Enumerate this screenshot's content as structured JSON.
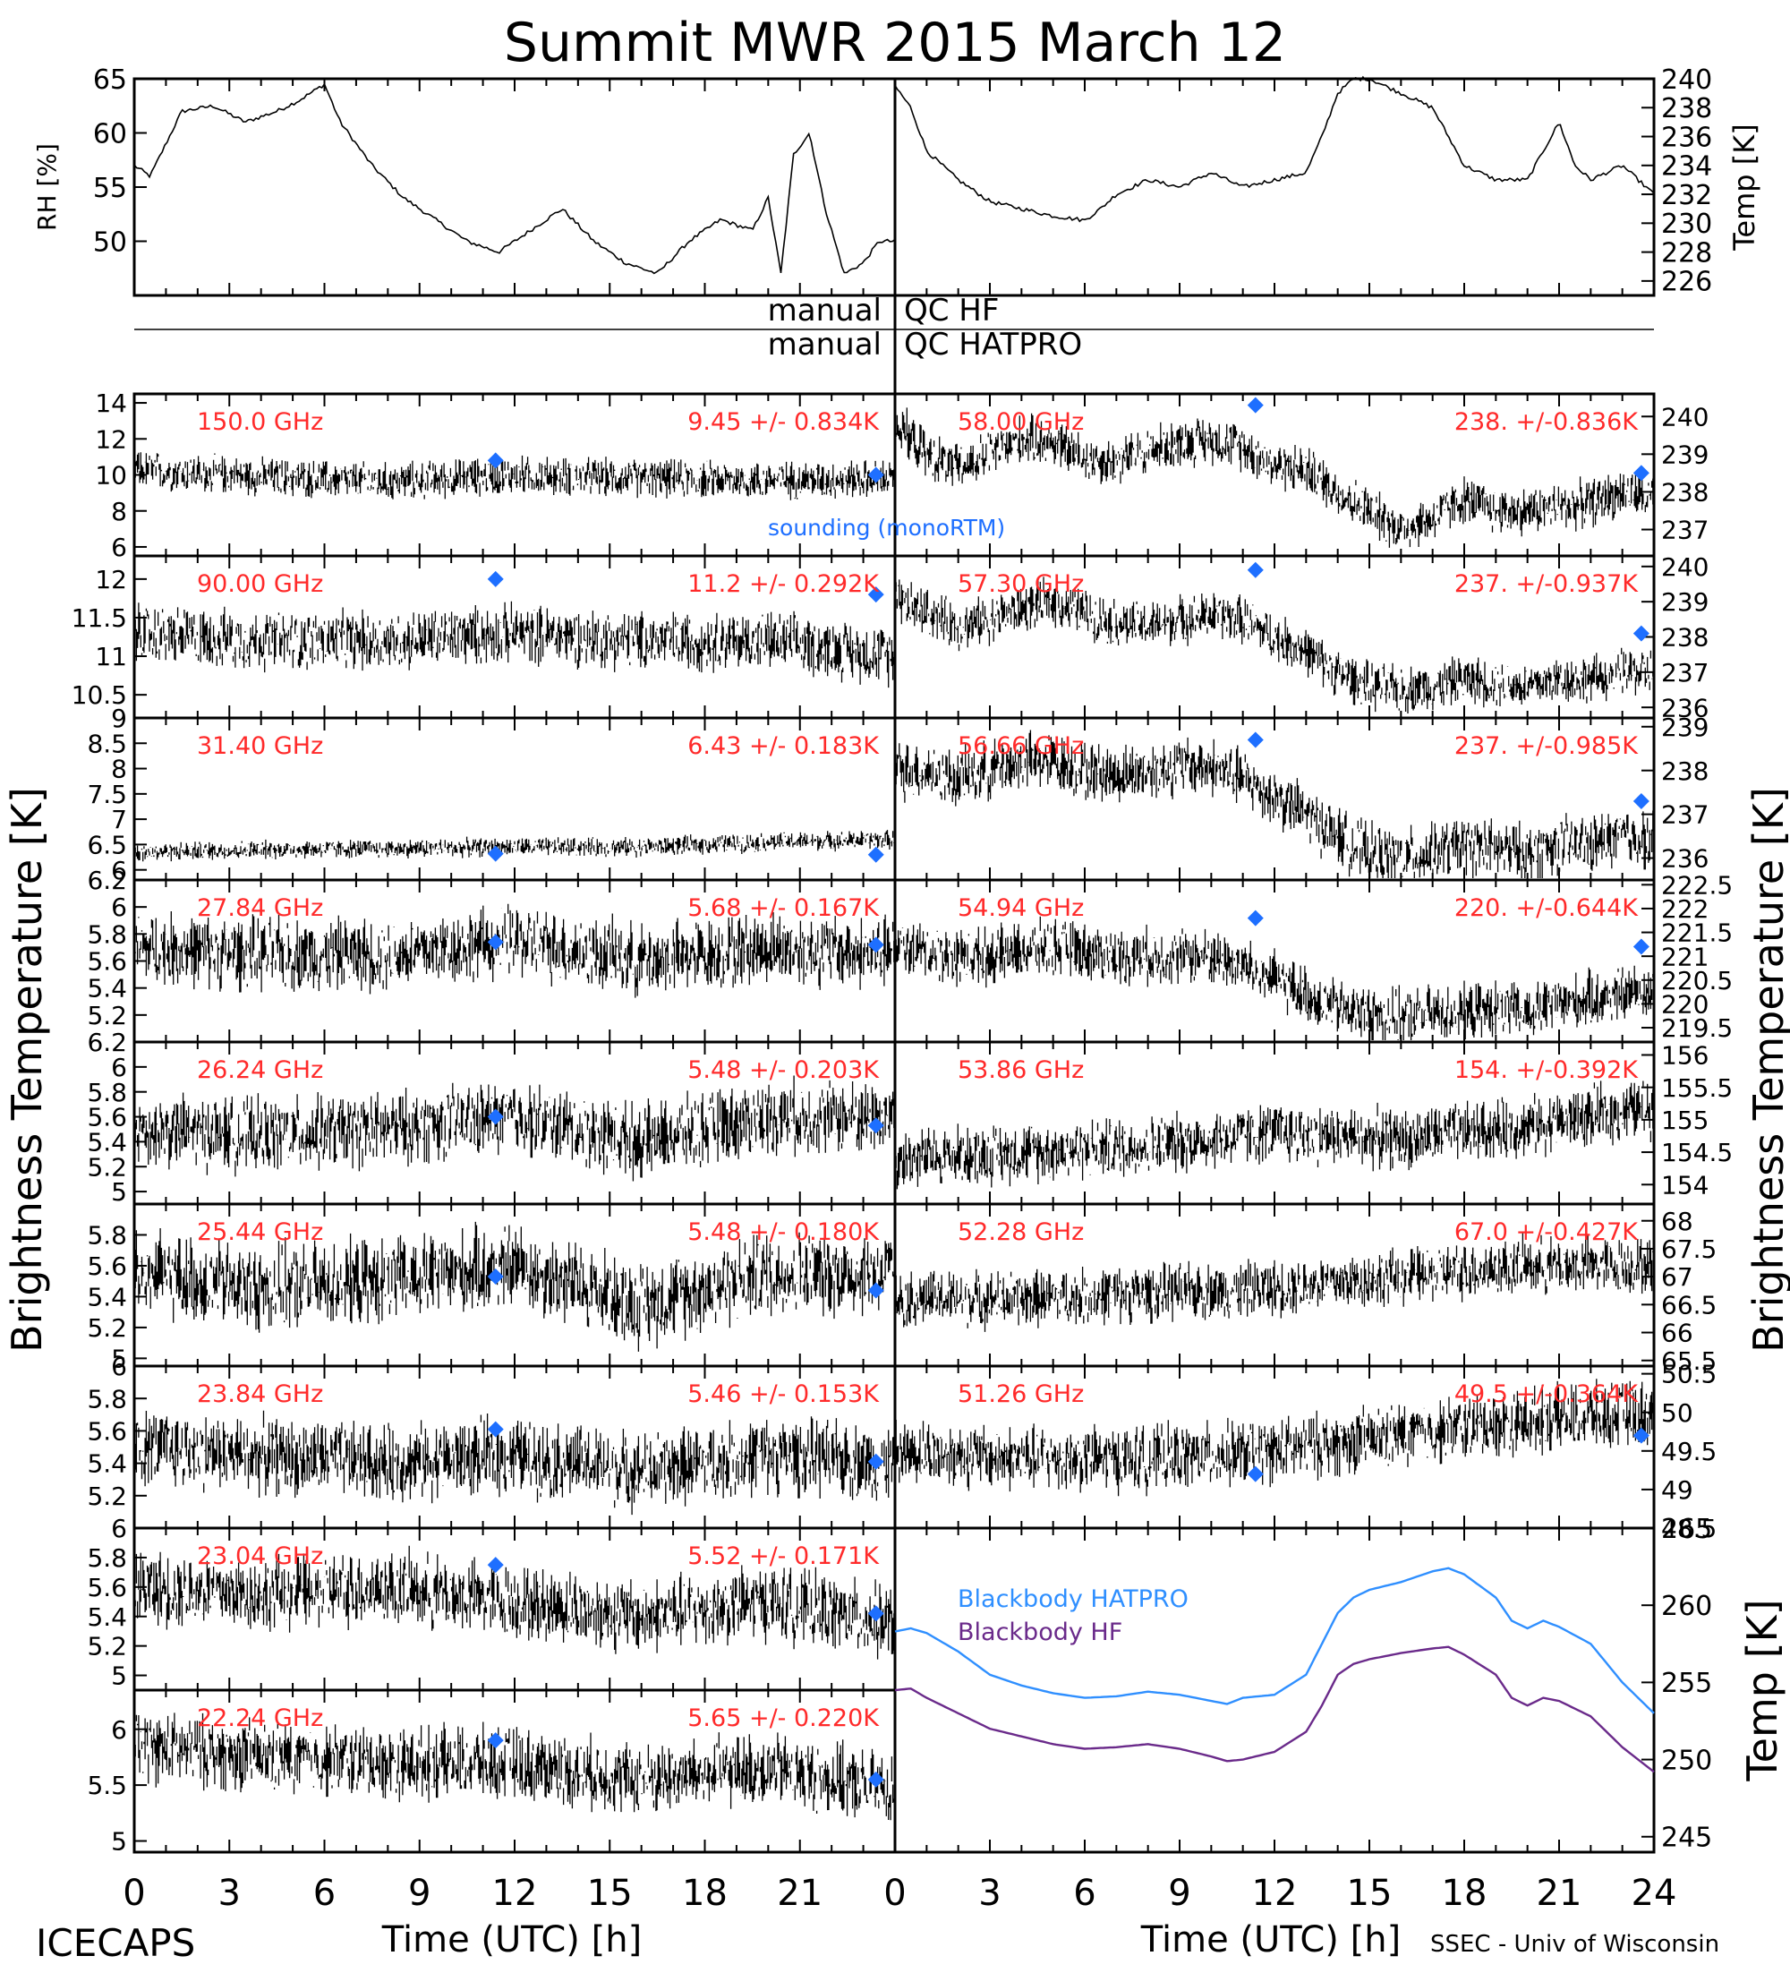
{
  "page": {
    "title": "Summit MWR 2015 March 12",
    "footer_left": "ICECAPS",
    "footer_right": "SSEC - Univ of Wisconsin",
    "qc_line1_left": "manual",
    "qc_line1_right": "QC HF",
    "qc_line2_left": "manual",
    "qc_line2_right": "QC HATPRO",
    "left_axis_title": "Brightness Temperature [K]",
    "right_axis_title": "Brightness Temperature [K]",
    "sounding_label": "sounding (monoRTM)",
    "xlabel": "Time (UTC) [h]",
    "xticks": [
      "0",
      "3",
      "6",
      "9",
      "12",
      "15",
      "18",
      "21",
      "24"
    ]
  },
  "colors": {
    "channel_label": "#ff2a2a",
    "sounding": "#1e6fff",
    "blackbody_hatpro": "#2f8fff",
    "blackbody_hf": "#6a2a8a",
    "trace": "#000000"
  },
  "chart_data": [
    {
      "type": "line",
      "id": "rh",
      "ylabel": "RH [%]",
      "ylim": [
        45,
        65
      ],
      "yticks": [
        50,
        55,
        60,
        65
      ],
      "xlim": [
        0,
        24
      ],
      "series": [
        {
          "x": [
            0,
            0.5,
            1.5,
            2.5,
            3.5,
            4.5,
            5.2,
            6.0,
            6.5,
            7.5,
            8.5,
            9.5,
            10.5,
            11.5,
            12.5,
            13.5,
            14.5,
            15.5,
            16.5,
            17.5,
            18.5,
            19.5,
            20.0,
            20.4,
            20.8,
            21.3,
            21.8,
            22.4,
            23.0,
            23.5,
            24
          ],
          "y": [
            57,
            56,
            62,
            62.5,
            61,
            62,
            63,
            64.5,
            61,
            57,
            54,
            52,
            50,
            49,
            51,
            53,
            50,
            48,
            47,
            50,
            52,
            51,
            54,
            47,
            58,
            60,
            53,
            47,
            48,
            50,
            50
          ]
        }
      ]
    },
    {
      "type": "line",
      "id": "temp",
      "ylabel": "Temp [K]",
      "ylim": [
        225,
        240
      ],
      "yticks": [
        226,
        228,
        230,
        232,
        234,
        236,
        238,
        240
      ],
      "xlim": [
        0,
        24
      ],
      "series": [
        {
          "x": [
            0,
            0.5,
            1.0,
            2.0,
            3.0,
            4.0,
            5.0,
            6.0,
            6.5,
            7.0,
            8.0,
            9.0,
            10.0,
            11.0,
            12.0,
            13.0,
            13.5,
            14.0,
            14.5,
            15.0,
            16.0,
            17.0,
            18.0,
            19.0,
            20.0,
            20.5,
            21.0,
            21.5,
            22.0,
            23.0,
            24
          ],
          "y": [
            239.5,
            238,
            235,
            233,
            231.5,
            231,
            230.5,
            230.2,
            231,
            232,
            233,
            232.5,
            233.5,
            232.5,
            233,
            233.5,
            236,
            239,
            240,
            240,
            239,
            238,
            234,
            233,
            233,
            235,
            237,
            234,
            233,
            234,
            232
          ]
        }
      ]
    },
    {
      "type": "line",
      "id": "ch-150",
      "channel": "150.0 GHz",
      "stat": "9.45 +/- 0.834K",
      "ylim": [
        5.5,
        14.5
      ],
      "yticks": [
        6,
        8,
        10,
        12,
        14
      ],
      "noise": 1.25,
      "x": [
        0,
        4,
        8,
        12,
        16,
        20,
        24
      ],
      "y": [
        10.3,
        9.9,
        9.6,
        10.0,
        9.8,
        9.7,
        9.8
      ],
      "sounding": [
        {
          "x": 11.4,
          "y": 10.8
        },
        {
          "x": 23.4,
          "y": 10.0
        }
      ]
    },
    {
      "type": "line",
      "id": "ch-90",
      "channel": "90.00 GHz",
      "stat": "11.2 +/- 0.292K",
      "ylim": [
        10.2,
        12.3
      ],
      "yticks": [
        10.5,
        11.0,
        11.5,
        12.0
      ],
      "noise": 0.45,
      "x": [
        0,
        4,
        8,
        12,
        16,
        20,
        24
      ],
      "y": [
        11.3,
        11.2,
        11.2,
        11.3,
        11.2,
        11.2,
        11.0
      ],
      "sounding": [
        {
          "x": 11.4,
          "y": 12.0
        },
        {
          "x": 23.4,
          "y": 11.8
        }
      ]
    },
    {
      "type": "line",
      "id": "ch-31",
      "channel": "31.40 GHz",
      "stat": "6.43 +/- 0.183K",
      "ylim": [
        5.8,
        9.0
      ],
      "yticks": [
        6.0,
        6.5,
        7.0,
        7.5,
        8.0,
        8.5,
        9.0
      ],
      "noise": 0.22,
      "x": [
        0,
        4,
        8,
        12,
        16,
        20,
        24
      ],
      "y": [
        6.35,
        6.4,
        6.42,
        6.45,
        6.45,
        6.55,
        6.6
      ],
      "sounding": [
        {
          "x": 11.4,
          "y": 6.32
        },
        {
          "x": 23.4,
          "y": 6.3
        }
      ]
    },
    {
      "type": "line",
      "id": "ch-27",
      "channel": "27.84 GHz",
      "stat": "5.68 +/- 0.167K",
      "ylim": [
        5.0,
        6.2
      ],
      "yticks": [
        5.2,
        5.4,
        5.6,
        5.8,
        6.0,
        6.2
      ],
      "noise": 0.32,
      "x": [
        0,
        4,
        8,
        12,
        16,
        20,
        24
      ],
      "y": [
        5.7,
        5.65,
        5.65,
        5.75,
        5.6,
        5.7,
        5.65
      ],
      "sounding": [
        {
          "x": 11.4,
          "y": 5.74
        },
        {
          "x": 23.4,
          "y": 5.72
        }
      ]
    },
    {
      "type": "line",
      "id": "ch-26",
      "channel": "26.24 GHz",
      "stat": "5.48 +/- 0.203K",
      "ylim": [
        4.9,
        6.2
      ],
      "yticks": [
        5.0,
        5.2,
        5.4,
        5.6,
        5.8,
        6.0,
        6.2
      ],
      "noise": 0.35,
      "x": [
        0,
        4,
        8,
        12,
        16,
        20,
        24
      ],
      "y": [
        5.5,
        5.45,
        5.5,
        5.6,
        5.4,
        5.6,
        5.6
      ],
      "sounding": [
        {
          "x": 11.4,
          "y": 5.6
        },
        {
          "x": 23.4,
          "y": 5.53
        }
      ]
    },
    {
      "type": "line",
      "id": "ch-25",
      "channel": "25.44 GHz",
      "stat": "5.48 +/- 0.180K",
      "ylim": [
        4.95,
        6.0
      ],
      "yticks": [
        5.0,
        5.2,
        5.4,
        5.6,
        5.8
      ],
      "noise": 0.33,
      "x": [
        0,
        4,
        8,
        12,
        16,
        20,
        24
      ],
      "y": [
        5.55,
        5.45,
        5.5,
        5.6,
        5.35,
        5.55,
        5.55
      ],
      "sounding": [
        {
          "x": 11.4,
          "y": 5.53
        },
        {
          "x": 23.4,
          "y": 5.44
        }
      ]
    },
    {
      "type": "line",
      "id": "ch-23.84",
      "channel": "23.84 GHz",
      "stat": "5.46 +/- 0.153K",
      "ylim": [
        5.0,
        6.0
      ],
      "yticks": [
        5.2,
        5.4,
        5.6,
        5.8,
        6.0
      ],
      "noise": 0.28,
      "x": [
        0,
        4,
        8,
        12,
        16,
        20,
        24
      ],
      "y": [
        5.5,
        5.45,
        5.4,
        5.45,
        5.35,
        5.45,
        5.4
      ],
      "sounding": [
        {
          "x": 11.4,
          "y": 5.61
        },
        {
          "x": 23.4,
          "y": 5.41
        }
      ]
    },
    {
      "type": "line",
      "id": "ch-23.04",
      "channel": "23.04 GHz",
      "stat": "5.52 +/- 0.171K",
      "ylim": [
        4.9,
        6.0
      ],
      "yticks": [
        5.0,
        5.2,
        5.4,
        5.6,
        5.8,
        6.0
      ],
      "noise": 0.3,
      "x": [
        0,
        4,
        8,
        12,
        16,
        20,
        24
      ],
      "y": [
        5.6,
        5.55,
        5.6,
        5.5,
        5.4,
        5.5,
        5.35
      ],
      "sounding": [
        {
          "x": 11.4,
          "y": 5.75
        },
        {
          "x": 23.4,
          "y": 5.42
        }
      ]
    },
    {
      "type": "line",
      "id": "ch-22",
      "channel": "22.24 GHz",
      "stat": "5.65 +/- 0.220K",
      "ylim": [
        4.9,
        6.35
      ],
      "yticks": [
        5.0,
        5.5,
        6.0
      ],
      "noise": 0.38,
      "x": [
        0,
        4,
        8,
        12,
        16,
        20,
        24
      ],
      "y": [
        5.85,
        5.75,
        5.7,
        5.7,
        5.55,
        5.65,
        5.45
      ],
      "sounding": [
        {
          "x": 11.4,
          "y": 5.9
        },
        {
          "x": 23.4,
          "y": 5.55
        }
      ]
    },
    {
      "type": "line",
      "id": "ch-58",
      "channel": "58.00 GHz",
      "stat": "238. +/-0.836K",
      "ylim": [
        236.3,
        240.6
      ],
      "yticks": [
        237,
        238,
        239,
        240
      ],
      "noise": 0.75,
      "x": [
        0,
        1,
        2,
        3,
        4,
        5,
        6,
        7,
        8,
        9,
        10,
        11,
        12,
        13,
        14,
        15,
        16,
        17,
        18,
        19,
        20,
        21,
        22,
        23,
        24
      ],
      "y": [
        239.8,
        239.0,
        238.6,
        239.0,
        239.4,
        239.3,
        238.9,
        238.8,
        239.1,
        239.3,
        239.4,
        239.2,
        238.7,
        238.6,
        238.0,
        237.5,
        237.0,
        237.3,
        237.8,
        237.5,
        237.5,
        237.6,
        237.7,
        238.0,
        237.8
      ],
      "sounding": [
        {
          "x": 11.4,
          "y": 240.3
        },
        {
          "x": 23.6,
          "y": 238.5
        }
      ]
    },
    {
      "type": "line",
      "id": "ch-57",
      "channel": "57.30 GHz",
      "stat": "237. +/-0.937K",
      "ylim": [
        235.7,
        240.3
      ],
      "yticks": [
        236,
        237,
        238,
        239,
        240
      ],
      "noise": 0.8,
      "x": [
        0,
        1,
        2,
        3,
        4,
        5,
        6,
        7,
        8,
        9,
        10,
        11,
        12,
        13,
        14,
        15,
        16,
        17,
        18,
        19,
        20,
        21,
        22,
        23,
        24
      ],
      "y": [
        239.0,
        238.7,
        238.3,
        238.5,
        238.8,
        239.0,
        238.7,
        238.4,
        238.3,
        238.5,
        238.6,
        238.5,
        238.0,
        237.6,
        237.0,
        236.6,
        236.5,
        236.6,
        236.8,
        236.7,
        236.6,
        236.8,
        236.8,
        237.0,
        237.0
      ],
      "sounding": [
        {
          "x": 11.4,
          "y": 239.9
        },
        {
          "x": 23.6,
          "y": 238.1
        }
      ]
    },
    {
      "type": "line",
      "id": "ch-56",
      "channel": "56.66 GHz",
      "stat": "237. +/-0.985K",
      "ylim": [
        235.5,
        239.2
      ],
      "yticks": [
        236,
        237,
        238,
        239
      ],
      "noise": 0.8,
      "x": [
        0,
        1,
        2,
        3,
        4,
        5,
        6,
        7,
        8,
        9,
        10,
        11,
        12,
        13,
        14,
        15,
        16,
        17,
        18,
        19,
        20,
        21,
        22,
        23,
        24
      ],
      "y": [
        238.0,
        238.0,
        237.8,
        238.0,
        238.2,
        238.2,
        238.0,
        237.9,
        238.0,
        238.1,
        238.1,
        237.8,
        237.4,
        237.0,
        236.5,
        236.1,
        236.0,
        236.1,
        236.3,
        236.2,
        236.1,
        236.3,
        236.3,
        236.5,
        236.4
      ],
      "sounding": [
        {
          "x": 11.4,
          "y": 238.7
        },
        {
          "x": 23.6,
          "y": 237.3
        }
      ]
    },
    {
      "type": "line",
      "id": "ch-54.94",
      "channel": "54.94 GHz",
      "stat": "220. +/-0.644K",
      "ylim": [
        219.2,
        222.6
      ],
      "yticks": [
        219.5,
        220.0,
        220.5,
        221.0,
        221.5,
        222.0,
        222.5
      ],
      "noise": 0.7,
      "x": [
        0,
        1,
        2,
        3,
        4,
        5,
        6,
        7,
        8,
        9,
        10,
        11,
        12,
        13,
        14,
        15,
        16,
        17,
        18,
        19,
        20,
        21,
        22,
        23,
        24
      ],
      "y": [
        221.2,
        221.1,
        221.0,
        221.0,
        221.1,
        221.2,
        221.1,
        221.0,
        221.0,
        221.0,
        221.0,
        220.8,
        220.5,
        220.2,
        219.9,
        219.8,
        219.7,
        219.8,
        219.8,
        219.9,
        219.8,
        220.0,
        220.1,
        220.2,
        220.3
      ],
      "sounding": [
        {
          "x": 11.4,
          "y": 221.8
        },
        {
          "x": 23.6,
          "y": 221.2
        }
      ]
    },
    {
      "type": "line",
      "id": "ch-53.86",
      "channel": "53.86 GHz",
      "stat": "154. +/-0.392K",
      "ylim": [
        153.7,
        156.2
      ],
      "yticks": [
        154.0,
        154.5,
        155.0,
        155.5,
        156.0
      ],
      "noise": 0.55,
      "x": [
        0,
        4,
        8,
        12,
        16,
        20,
        24
      ],
      "y": [
        154.4,
        154.5,
        154.6,
        154.8,
        154.7,
        154.9,
        155.2
      ],
      "sounding": []
    },
    {
      "type": "line",
      "id": "ch-52.28",
      "channel": "52.28 GHz",
      "stat": "67.0 +/-0.427K",
      "ylim": [
        65.4,
        68.3
      ],
      "yticks": [
        65.5,
        66.0,
        66.5,
        67.0,
        67.5,
        68.0
      ],
      "noise": 0.6,
      "x": [
        0,
        4,
        8,
        12,
        16,
        20,
        24
      ],
      "y": [
        66.6,
        66.6,
        66.7,
        66.8,
        67.0,
        67.2,
        67.2
      ],
      "sounding": []
    },
    {
      "type": "line",
      "id": "ch-51.26",
      "channel": "51.26 GHz",
      "stat": "49.5 +/-0.364K",
      "ylim": [
        48.5,
        50.6
      ],
      "yticks": [
        48.5,
        49.0,
        49.5,
        50.0,
        50.5
      ],
      "noise": 0.5,
      "x": [
        0,
        4,
        8,
        12,
        16,
        20,
        24
      ],
      "y": [
        49.5,
        49.4,
        49.4,
        49.5,
        49.7,
        49.9,
        50.0
      ],
      "sounding": [
        {
          "x": 11.4,
          "y": 49.2
        },
        {
          "x": 23.6,
          "y": 49.7
        }
      ]
    },
    {
      "type": "line",
      "id": "blackbody",
      "ylabel": "Temp [K]",
      "ylim": [
        244,
        265
      ],
      "yticks": [
        245,
        250,
        255,
        260,
        265
      ],
      "xlim": [
        0,
        24
      ],
      "series": [
        {
          "name": "Blackbody HATPRO",
          "x": [
            0,
            0.5,
            1,
            2,
            3,
            4,
            5,
            6,
            7,
            8,
            9,
            10,
            10.5,
            11,
            12,
            13,
            13.5,
            14,
            14.5,
            15,
            16,
            17,
            17.5,
            18,
            19,
            19.5,
            20,
            20.5,
            21,
            22,
            23,
            24
          ],
          "y": [
            258.3,
            258.5,
            258.2,
            257.0,
            255.5,
            254.8,
            254.3,
            254.0,
            254.1,
            254.4,
            254.2,
            253.8,
            253.6,
            254.0,
            254.2,
            255.5,
            257.5,
            259.5,
            260.5,
            261.0,
            261.5,
            262.2,
            262.4,
            262.0,
            260.5,
            259.0,
            258.5,
            259.0,
            258.6,
            257.5,
            255.0,
            253.0
          ]
        },
        {
          "name": "Blackbody HF",
          "x": [
            0,
            0.5,
            1,
            2,
            3,
            4,
            5,
            6,
            7,
            8,
            9,
            10,
            10.5,
            11,
            12,
            13,
            13.5,
            14,
            14.5,
            15,
            16,
            17,
            17.5,
            18,
            19,
            19.5,
            20,
            20.5,
            21,
            22,
            23,
            24
          ],
          "y": [
            254.5,
            254.6,
            254.0,
            253.0,
            252.0,
            251.5,
            251.0,
            250.7,
            250.8,
            251.0,
            250.7,
            250.2,
            249.9,
            250.0,
            250.5,
            251.8,
            253.5,
            255.5,
            256.2,
            256.5,
            256.9,
            257.2,
            257.3,
            256.8,
            255.5,
            254.0,
            253.5,
            254.0,
            253.8,
            252.8,
            250.8,
            249.2
          ]
        }
      ]
    }
  ]
}
